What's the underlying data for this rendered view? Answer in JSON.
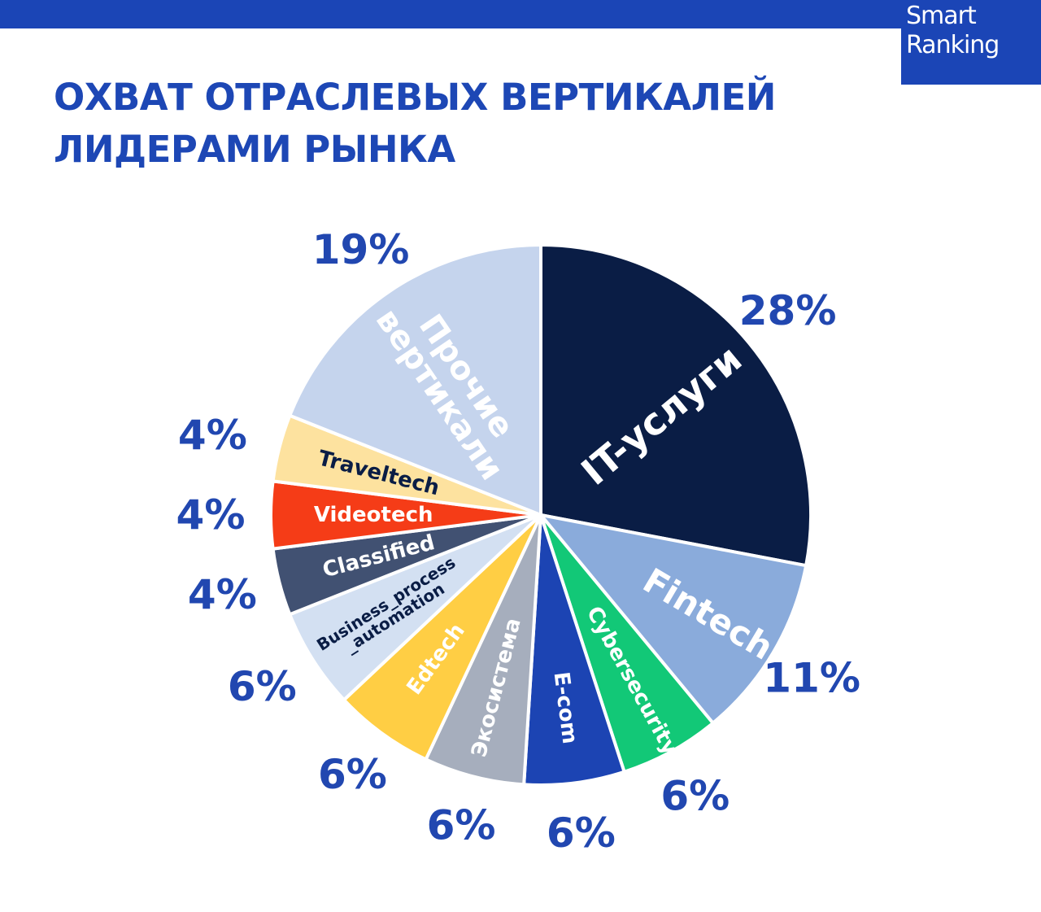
{
  "colors": {
    "brand": "#1b45b6",
    "title": "#1d47b5",
    "percent": "#2147b0",
    "background": "#ffffff"
  },
  "logo": {
    "line1": "Smart",
    "line2": "Ranking"
  },
  "title": {
    "line1": "ОХВАТ ОТРАСЛЕВЫХ ВЕРТИКАЛЕЙ",
    "line2": "ЛИДЕРАМИ РЫНКА"
  },
  "chart_data": {
    "type": "pie",
    "title": "ОХВАТ ОТРАСЛЕВЫХ ВЕРТИКАЛЕЙ ЛИДЕРАМИ РЫНКА",
    "unit": "%",
    "start": "12 o'clock",
    "direction": "clockwise",
    "slices": [
      {
        "label": "IT-услуги",
        "lines": [
          "IT-услуги"
        ],
        "value": 28,
        "value_label": "28%",
        "color": "#0a1d45",
        "text_color": "#ffffff"
      },
      {
        "label": "Fintech",
        "lines": [
          "Fintech"
        ],
        "value": 11,
        "value_label": "11%",
        "color": "#8aabdb",
        "text_color": "#ffffff"
      },
      {
        "label": "Cybersecurity",
        "lines": [
          "Cybersecurity"
        ],
        "value": 6,
        "value_label": "6%",
        "color": "#12c877",
        "text_color": "#ffffff"
      },
      {
        "label": "E-com",
        "lines": [
          "E-com"
        ],
        "value": 6,
        "value_label": "6%",
        "color": "#1c44b3",
        "text_color": "#ffffff"
      },
      {
        "label": "Экосистема",
        "lines": [
          "Экосистема"
        ],
        "value": 6,
        "value_label": "6%",
        "color": "#a6aebd",
        "text_color": "#ffffff"
      },
      {
        "label": "Edtech",
        "lines": [
          "Edtech"
        ],
        "value": 6,
        "value_label": "6%",
        "color": "#ffce44",
        "text_color": "#ffffff"
      },
      {
        "label": "Business_process_automation",
        "lines": [
          "Business_process",
          "_automation"
        ],
        "value": 6,
        "value_label": "6%",
        "color": "#d3e0f2",
        "text_color": "#0a1d45"
      },
      {
        "label": "Classified",
        "lines": [
          "Classified"
        ],
        "value": 4,
        "value_label": "4%",
        "color": "#415172",
        "text_color": "#ffffff"
      },
      {
        "label": "Videotech",
        "lines": [
          "Videotech"
        ],
        "value": 4,
        "value_label": "4%",
        "color": "#f53c17",
        "text_color": "#ffffff"
      },
      {
        "label": "Traveltech",
        "lines": [
          "Traveltech"
        ],
        "value": 4,
        "value_label": "4%",
        "color": "#fde29f",
        "text_color": "#0a1d45"
      },
      {
        "label": "Прочие вертикали",
        "lines": [
          "Прочие",
          "вертикали"
        ],
        "value": 19,
        "value_label": "19%",
        "color": "#c5d4ed",
        "text_color": "#ffffff"
      }
    ]
  }
}
